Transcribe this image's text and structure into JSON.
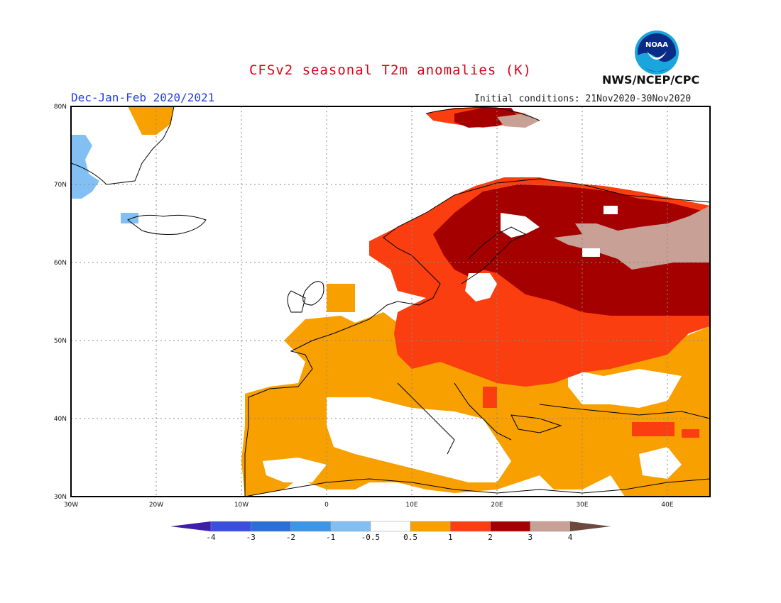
{
  "header": {
    "title": "CFSv2 seasonal T2m anomalies (K)",
    "period": "Dec-Jan-Feb 2020/2021",
    "initial_conditions": "Initial conditions: 21Nov2020-30Nov2020",
    "agency": "NWS/NCEP/CPC",
    "logo_text": "NOAA"
  },
  "map": {
    "lon_range": [
      -30,
      45
    ],
    "lat_range": [
      30,
      80
    ],
    "lon_ticks": [
      "30W",
      "20W",
      "10W",
      "0",
      "10E",
      "20E",
      "30E",
      "40E"
    ],
    "lat_ticks": [
      "80N",
      "70N",
      "60N",
      "50N",
      "40N",
      "30N"
    ],
    "grid": "dotted",
    "region": "Europe"
  },
  "colorbar": {
    "labels": [
      "-4",
      "-3",
      "-2",
      "-1",
      "-0.5",
      "0.5",
      "1",
      "2",
      "3",
      "4"
    ],
    "colors": [
      "#3f1faa",
      "#3a4fdc",
      "#2a6fd8",
      "#3c96e8",
      "#82c0f4",
      "#ffffff",
      "#f8a000",
      "#fa3e10",
      "#a50000",
      "#c8a095",
      "#6c4a3e"
    ]
  }
}
